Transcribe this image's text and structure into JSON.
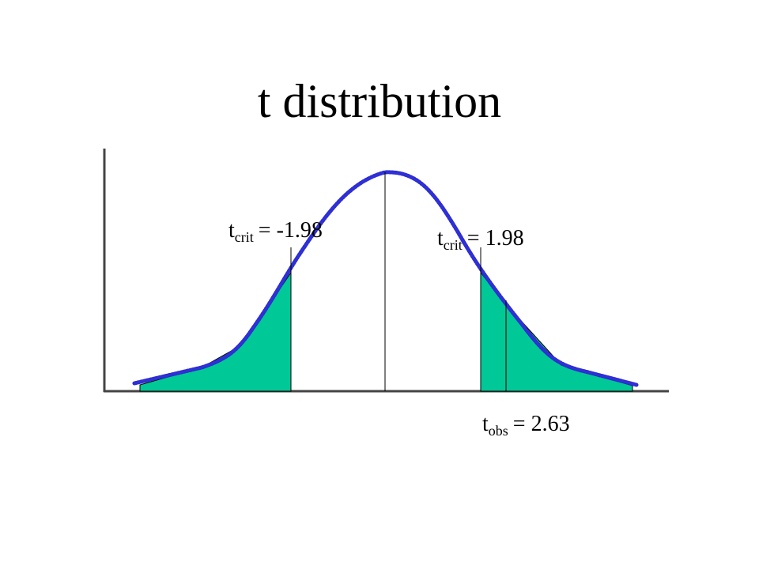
{
  "header": {
    "title": "t distribution"
  },
  "labels": [
    {
      "symbol": "t",
      "subscript": "crit",
      "text": "= -1.98"
    },
    {
      "symbol": "t",
      "subscript": "crit",
      "text": "= 1.98"
    },
    {
      "symbol": "t",
      "subscript": "obs",
      "text": "= 2.63"
    }
  ]
}
